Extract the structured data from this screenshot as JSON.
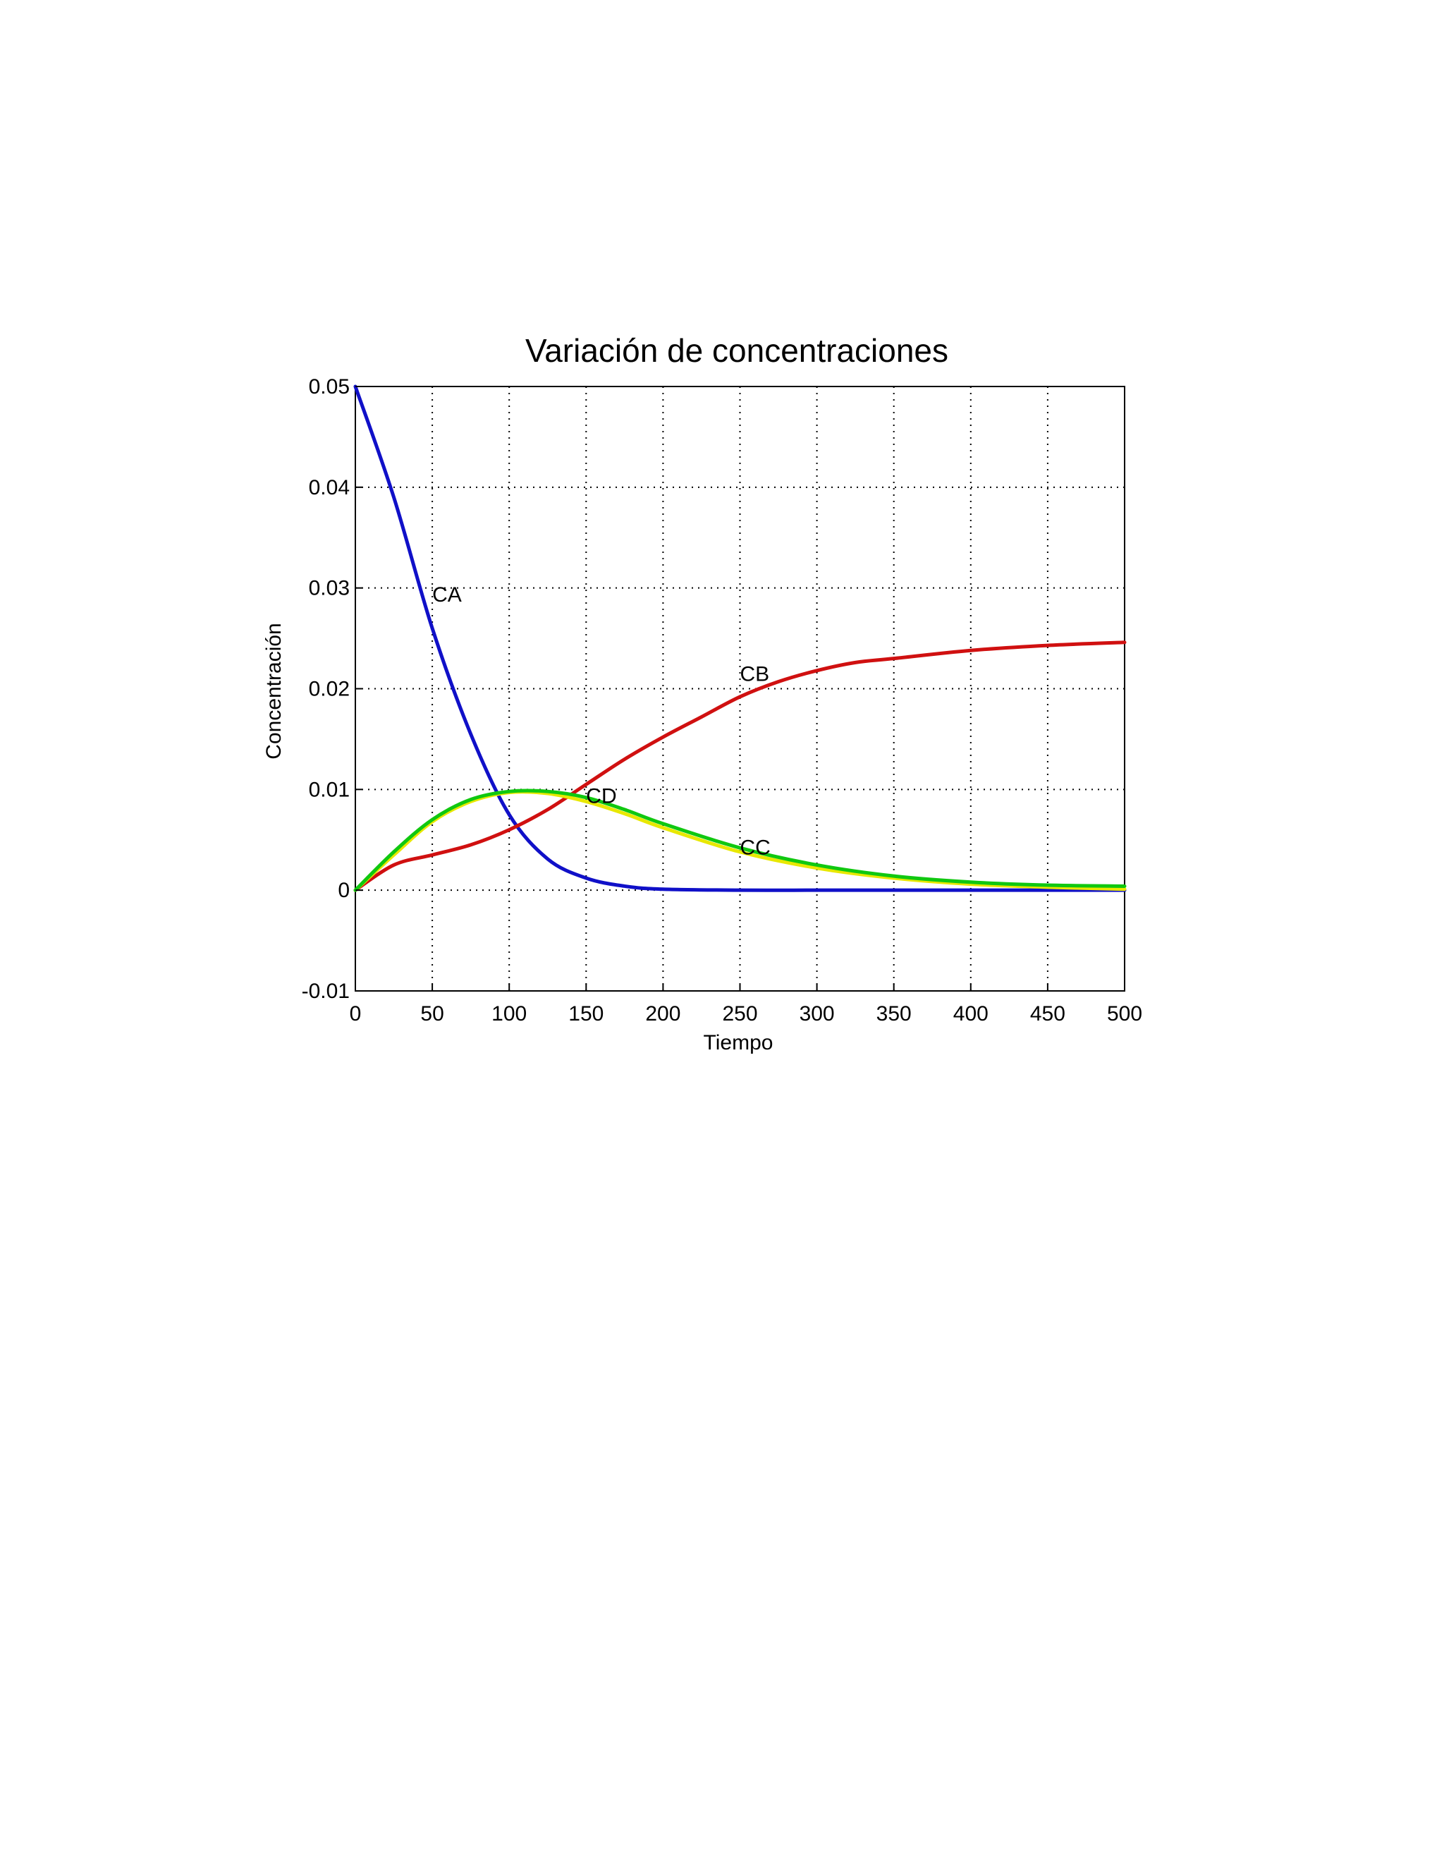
{
  "chart_data": {
    "type": "line",
    "title": "Variación  de concentraciones",
    "xlabel": "Tiempo",
    "ylabel": "Concentración",
    "xlim": [
      0,
      500
    ],
    "ylim": [
      -0.01,
      0.05
    ],
    "grid": true,
    "x_ticks": [
      "0",
      "50",
      "100",
      "150",
      "200",
      "250",
      "300",
      "350",
      "400",
      "450",
      "500"
    ],
    "y_ticks": [
      "-0.01",
      "0",
      "0.01",
      "0.02",
      "0.03",
      "0.04",
      "0.05"
    ],
    "x_tick_values": [
      0,
      50,
      100,
      150,
      200,
      250,
      300,
      350,
      400,
      450,
      500
    ],
    "y_tick_values": [
      -0.01,
      0,
      0.01,
      0.02,
      0.03,
      0.04,
      0.05
    ],
    "series": [
      {
        "name": "CA",
        "color": "#1010c8",
        "x": [
          0,
          25,
          50,
          75,
          100,
          125,
          150,
          175,
          200,
          250,
          300,
          350,
          400,
          450,
          500
        ],
        "y": [
          0.05,
          0.039,
          0.026,
          0.0155,
          0.0075,
          0.0031,
          0.0012,
          0.0004,
          0.0001,
          0.0,
          0.0,
          0.0,
          0.0,
          0.0,
          0.0
        ]
      },
      {
        "name": "CB",
        "color": "#d01010",
        "x": [
          0,
          25,
          50,
          75,
          100,
          125,
          150,
          175,
          200,
          225,
          250,
          275,
          300,
          325,
          350,
          400,
          450,
          500
        ],
        "y": [
          0.0,
          0.0025,
          0.0035,
          0.0045,
          0.006,
          0.008,
          0.0105,
          0.013,
          0.0152,
          0.0172,
          0.0192,
          0.0207,
          0.0218,
          0.0226,
          0.023,
          0.0238,
          0.0243,
          0.0246
        ]
      },
      {
        "name": "CC",
        "color": "#e8e800",
        "x": [
          0,
          25,
          50,
          75,
          100,
          125,
          150,
          175,
          200,
          250,
          300,
          350,
          400,
          450,
          500
        ],
        "y": [
          0.0,
          0.0035,
          0.0068,
          0.0088,
          0.0097,
          0.0096,
          0.0088,
          0.0076,
          0.0062,
          0.0038,
          0.0022,
          0.0012,
          0.0006,
          0.0003,
          0.0001
        ]
      },
      {
        "name": "CD",
        "color": "#10c810",
        "x": [
          0,
          25,
          50,
          75,
          100,
          125,
          150,
          175,
          200,
          250,
          300,
          350,
          400,
          450,
          500
        ],
        "y": [
          0.0,
          0.0038,
          0.007,
          0.009,
          0.0098,
          0.0098,
          0.0092,
          0.008,
          0.0066,
          0.0042,
          0.0025,
          0.0014,
          0.0008,
          0.0005,
          0.0004
        ]
      }
    ],
    "annotations": [
      {
        "text": "CA",
        "x": 50,
        "y": 0.0295
      },
      {
        "text": "CB",
        "x": 250,
        "y": 0.0216
      },
      {
        "text": "CD",
        "x": 150,
        "y": 0.0095
      },
      {
        "text": "CC",
        "x": 250,
        "y": 0.0044
      }
    ]
  }
}
